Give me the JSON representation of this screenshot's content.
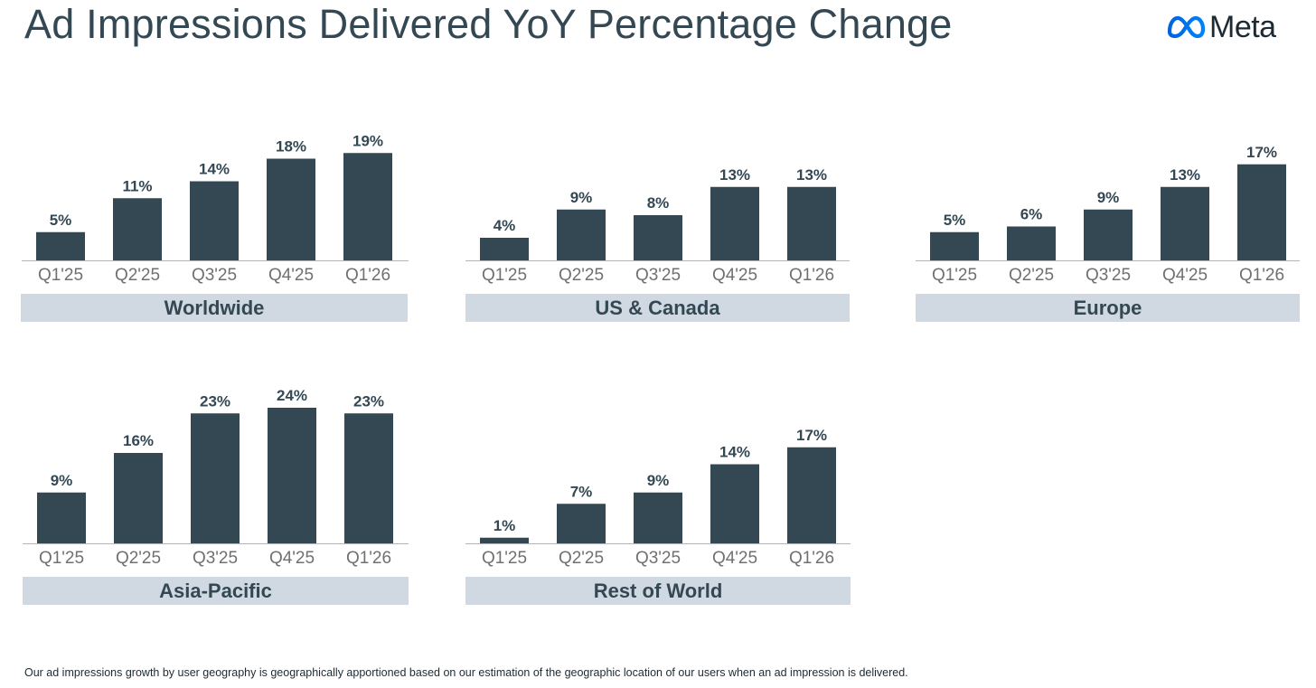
{
  "title": "Ad Impressions Delivered YoY Percentage Change",
  "logo": {
    "text": "Meta",
    "icon": "meta-infinity-icon"
  },
  "colors": {
    "bar": "#344854",
    "label_band": "#d0d9e1",
    "axis": "#b4b4b4",
    "tick_text": "#707070",
    "text": "#344854"
  },
  "chart_data": [
    {
      "type": "bar",
      "title": "Worldwide",
      "categories": [
        "Q1'25",
        "Q2'25",
        "Q3'25",
        "Q4'25",
        "Q1'26"
      ],
      "values": [
        5,
        11,
        14,
        18,
        19
      ],
      "unit": "%",
      "ylim": [
        0,
        24
      ]
    },
    {
      "type": "bar",
      "title": "US & Canada",
      "categories": [
        "Q1'25",
        "Q2'25",
        "Q3'25",
        "Q4'25",
        "Q1'26"
      ],
      "values": [
        4,
        9,
        8,
        13,
        13
      ],
      "unit": "%",
      "ylim": [
        0,
        24
      ]
    },
    {
      "type": "bar",
      "title": "Europe",
      "categories": [
        "Q1'25",
        "Q2'25",
        "Q3'25",
        "Q4'25",
        "Q1'26"
      ],
      "values": [
        5,
        6,
        9,
        13,
        17
      ],
      "unit": "%",
      "ylim": [
        0,
        24
      ]
    },
    {
      "type": "bar",
      "title": "Asia-Pacific",
      "categories": [
        "Q1'25",
        "Q2'25",
        "Q3'25",
        "Q4'25",
        "Q1'26"
      ],
      "values": [
        9,
        16,
        23,
        24,
        23
      ],
      "unit": "%",
      "ylim": [
        0,
        24
      ]
    },
    {
      "type": "bar",
      "title": "Rest of World",
      "categories": [
        "Q1'25",
        "Q2'25",
        "Q3'25",
        "Q4'25",
        "Q1'26"
      ],
      "values": [
        1,
        7,
        9,
        14,
        17
      ],
      "unit": "%",
      "ylim": [
        0,
        24
      ]
    }
  ],
  "footnote": "Our ad impressions growth by user geography is geographically apportioned based on our estimation of the geographic location of our users when an ad impression is delivered."
}
